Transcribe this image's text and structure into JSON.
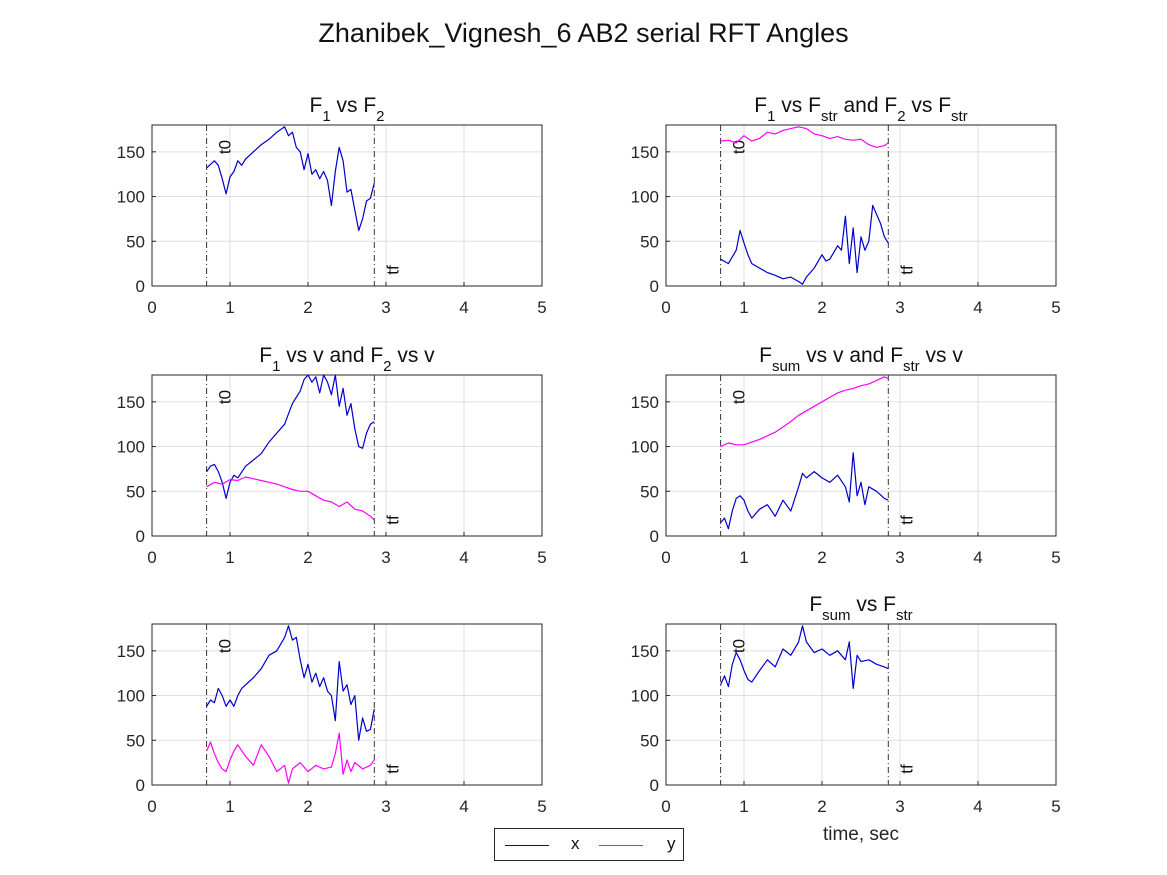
{
  "figure": {
    "title": "Zhanibek_Vignesh_6 AB2 serial RFT Angles",
    "xlabel": "time, sec"
  },
  "legend": {
    "entries": [
      {
        "label": "x",
        "color": "#0000cc"
      },
      {
        "label": "y",
        "color": "#ff00ff"
      }
    ],
    "placement": "bottom-center"
  },
  "chart_data": [
    {
      "id": "p1",
      "type": "line",
      "title_parts": [
        {
          "t": "F"
        },
        {
          "t": "1",
          "sub": true
        },
        {
          "t": " vs F"
        },
        {
          "t": "2",
          "sub": true
        }
      ],
      "title": "F1 vs F2",
      "xlim": [
        0,
        5
      ],
      "ylim": [
        0,
        180
      ],
      "xticks": [
        0,
        1,
        2,
        3,
        4,
        5
      ],
      "yticks": [
        0,
        50,
        100,
        150
      ],
      "grid": true,
      "markers": [
        {
          "label": "t0",
          "x": 0.7
        },
        {
          "label": "tf",
          "x": 2.85
        }
      ],
      "series": [
        {
          "color": "#0000cc",
          "x": [
            0.7,
            0.75,
            0.8,
            0.85,
            0.9,
            0.95,
            1.0,
            1.05,
            1.1,
            1.15,
            1.2,
            1.3,
            1.4,
            1.5,
            1.6,
            1.7,
            1.75,
            1.8,
            1.85,
            1.9,
            1.95,
            2.0,
            2.05,
            2.1,
            2.15,
            2.2,
            2.25,
            2.3,
            2.35,
            2.4,
            2.45,
            2.5,
            2.55,
            2.6,
            2.65,
            2.7,
            2.75,
            2.8,
            2.85
          ],
          "y": [
            132,
            136,
            140,
            135,
            120,
            103,
            122,
            128,
            140,
            135,
            142,
            150,
            158,
            164,
            172,
            178,
            168,
            172,
            155,
            150,
            130,
            148,
            125,
            130,
            120,
            128,
            118,
            90,
            128,
            155,
            140,
            105,
            108,
            85,
            62,
            75,
            95,
            98,
            115
          ]
        }
      ]
    },
    {
      "id": "p2",
      "type": "line",
      "title_parts": [
        {
          "t": "F"
        },
        {
          "t": "1",
          "sub": true
        },
        {
          "t": " vs F"
        },
        {
          "t": "str",
          "sub": true
        },
        {
          "t": " and F"
        },
        {
          "t": "2",
          "sub": true
        },
        {
          "t": " vs F"
        },
        {
          "t": "str",
          "sub": true
        }
      ],
      "title": "F1 vs Fstr and F2 vs Fstr",
      "xlim": [
        0,
        5
      ],
      "ylim": [
        0,
        180
      ],
      "xticks": [
        0,
        1,
        2,
        3,
        4,
        5
      ],
      "yticks": [
        0,
        50,
        100,
        150
      ],
      "grid": true,
      "markers": [
        {
          "label": "t0",
          "x": 0.7
        },
        {
          "label": "tf",
          "x": 2.85
        }
      ],
      "series": [
        {
          "color": "#0000cc",
          "x": [
            0.7,
            0.8,
            0.9,
            0.95,
            1.0,
            1.05,
            1.1,
            1.2,
            1.3,
            1.4,
            1.5,
            1.6,
            1.7,
            1.75,
            1.8,
            1.9,
            2.0,
            2.05,
            2.1,
            2.2,
            2.25,
            2.3,
            2.35,
            2.4,
            2.45,
            2.5,
            2.55,
            2.6,
            2.65,
            2.7,
            2.75,
            2.8,
            2.85
          ],
          "y": [
            30,
            25,
            40,
            62,
            48,
            35,
            25,
            20,
            15,
            12,
            8,
            10,
            5,
            2,
            10,
            20,
            35,
            28,
            30,
            45,
            40,
            78,
            25,
            65,
            15,
            55,
            40,
            50,
            90,
            80,
            70,
            55,
            48
          ]
        },
        {
          "color": "#ff00ff",
          "x": [
            0.7,
            0.8,
            0.9,
            1.0,
            1.1,
            1.2,
            1.3,
            1.4,
            1.5,
            1.6,
            1.7,
            1.8,
            1.9,
            2.0,
            2.1,
            2.2,
            2.3,
            2.4,
            2.5,
            2.6,
            2.7,
            2.8,
            2.85
          ],
          "y": [
            162,
            163,
            160,
            168,
            162,
            165,
            172,
            170,
            174,
            176,
            178,
            176,
            170,
            168,
            165,
            167,
            164,
            163,
            164,
            158,
            155,
            157,
            160
          ]
        }
      ]
    },
    {
      "id": "p3",
      "type": "line",
      "title_parts": [
        {
          "t": "F"
        },
        {
          "t": "1",
          "sub": true
        },
        {
          "t": " vs v and F"
        },
        {
          "t": "2",
          "sub": true
        },
        {
          "t": " vs v"
        }
      ],
      "title": "F1 vs v and F2 vs v",
      "xlim": [
        0,
        5
      ],
      "ylim": [
        0,
        180
      ],
      "xticks": [
        0,
        1,
        2,
        3,
        4,
        5
      ],
      "yticks": [
        0,
        50,
        100,
        150
      ],
      "grid": true,
      "markers": [
        {
          "label": "t0",
          "x": 0.7
        },
        {
          "label": "tf",
          "x": 2.85
        }
      ],
      "series": [
        {
          "color": "#0000cc",
          "x": [
            0.7,
            0.75,
            0.8,
            0.85,
            0.9,
            0.95,
            1.0,
            1.05,
            1.1,
            1.2,
            1.3,
            1.4,
            1.5,
            1.6,
            1.7,
            1.8,
            1.9,
            1.95,
            2.0,
            2.05,
            2.1,
            2.15,
            2.2,
            2.25,
            2.3,
            2.35,
            2.4,
            2.45,
            2.5,
            2.55,
            2.6,
            2.65,
            2.7,
            2.75,
            2.8,
            2.85
          ],
          "y": [
            72,
            78,
            80,
            72,
            60,
            42,
            60,
            68,
            65,
            78,
            85,
            92,
            105,
            115,
            125,
            148,
            162,
            175,
            180,
            172,
            178,
            160,
            180,
            172,
            158,
            180,
            145,
            165,
            135,
            148,
            120,
            100,
            98,
            115,
            125,
            128
          ]
        },
        {
          "color": "#ff00ff",
          "x": [
            0.7,
            0.8,
            0.9,
            1.0,
            1.1,
            1.2,
            1.3,
            1.4,
            1.5,
            1.6,
            1.7,
            1.8,
            1.9,
            2.0,
            2.1,
            2.2,
            2.3,
            2.4,
            2.5,
            2.6,
            2.7,
            2.8,
            2.85
          ],
          "y": [
            55,
            60,
            58,
            63,
            62,
            66,
            64,
            62,
            60,
            58,
            55,
            52,
            50,
            50,
            45,
            40,
            38,
            33,
            38,
            30,
            28,
            22,
            18
          ]
        }
      ]
    },
    {
      "id": "p4",
      "type": "line",
      "title_parts": [
        {
          "t": "F"
        },
        {
          "t": "sum",
          "sub": true
        },
        {
          "t": " vs v and F"
        },
        {
          "t": "str",
          "sub": true
        },
        {
          "t": " vs v"
        }
      ],
      "title": "Fsum vs v and Fstr vs v",
      "xlim": [
        0,
        5
      ],
      "ylim": [
        0,
        180
      ],
      "xticks": [
        0,
        1,
        2,
        3,
        4,
        5
      ],
      "yticks": [
        0,
        50,
        100,
        150
      ],
      "grid": true,
      "markers": [
        {
          "label": "t0",
          "x": 0.7
        },
        {
          "label": "tf",
          "x": 2.85
        }
      ],
      "series": [
        {
          "color": "#0000cc",
          "x": [
            0.7,
            0.75,
            0.8,
            0.85,
            0.9,
            0.95,
            1.0,
            1.05,
            1.1,
            1.2,
            1.3,
            1.4,
            1.5,
            1.6,
            1.7,
            1.75,
            1.8,
            1.9,
            2.0,
            2.1,
            2.2,
            2.3,
            2.35,
            2.4,
            2.45,
            2.5,
            2.55,
            2.6,
            2.7,
            2.8,
            2.85
          ],
          "y": [
            15,
            20,
            8,
            28,
            42,
            45,
            40,
            28,
            20,
            30,
            35,
            22,
            40,
            28,
            55,
            70,
            65,
            72,
            65,
            60,
            68,
            55,
            38,
            93,
            45,
            60,
            35,
            55,
            50,
            42,
            40
          ]
        },
        {
          "color": "#ff00ff",
          "x": [
            0.7,
            0.8,
            0.9,
            1.0,
            1.1,
            1.2,
            1.3,
            1.4,
            1.5,
            1.6,
            1.7,
            1.8,
            1.9,
            2.0,
            2.1,
            2.2,
            2.3,
            2.4,
            2.5,
            2.6,
            2.7,
            2.8,
            2.85
          ],
          "y": [
            100,
            104,
            102,
            102,
            105,
            108,
            112,
            116,
            122,
            128,
            135,
            140,
            145,
            150,
            155,
            160,
            163,
            165,
            168,
            170,
            174,
            178,
            176
          ]
        }
      ]
    },
    {
      "id": "p5",
      "type": "line",
      "title_parts": [],
      "title": "",
      "xlim": [
        0,
        5
      ],
      "ylim": [
        0,
        180
      ],
      "xticks": [
        0,
        1,
        2,
        3,
        4,
        5
      ],
      "yticks": [
        0,
        50,
        100,
        150
      ],
      "grid": true,
      "markers": [
        {
          "label": "t0",
          "x": 0.7
        },
        {
          "label": "tf",
          "x": 2.85
        }
      ],
      "series": [
        {
          "color": "#0000cc",
          "x": [
            0.7,
            0.75,
            0.8,
            0.85,
            0.9,
            0.95,
            1.0,
            1.05,
            1.1,
            1.15,
            1.2,
            1.3,
            1.4,
            1.5,
            1.6,
            1.7,
            1.75,
            1.8,
            1.85,
            1.9,
            1.95,
            2.0,
            2.05,
            2.1,
            2.15,
            2.2,
            2.25,
            2.3,
            2.35,
            2.4,
            2.45,
            2.5,
            2.55,
            2.6,
            2.65,
            2.7,
            2.75,
            2.8,
            2.85
          ],
          "y": [
            88,
            95,
            92,
            108,
            100,
            88,
            95,
            88,
            100,
            108,
            112,
            120,
            130,
            145,
            150,
            165,
            178,
            162,
            165,
            140,
            120,
            135,
            115,
            125,
            110,
            120,
            105,
            100,
            72,
            138,
            105,
            112,
            90,
            100,
            50,
            75,
            60,
            62,
            85
          ]
        },
        {
          "color": "#ff00ff",
          "x": [
            0.7,
            0.75,
            0.8,
            0.85,
            0.9,
            0.95,
            1.0,
            1.05,
            1.1,
            1.2,
            1.3,
            1.4,
            1.5,
            1.6,
            1.7,
            1.75,
            1.8,
            1.9,
            2.0,
            2.1,
            2.2,
            2.3,
            2.35,
            2.4,
            2.45,
            2.5,
            2.55,
            2.6,
            2.7,
            2.8,
            2.85
          ],
          "y": [
            38,
            48,
            35,
            25,
            18,
            15,
            28,
            38,
            45,
            32,
            22,
            45,
            32,
            15,
            22,
            2,
            18,
            25,
            15,
            22,
            18,
            20,
            35,
            58,
            12,
            28,
            15,
            25,
            18,
            22,
            28
          ]
        }
      ]
    },
    {
      "id": "p6",
      "type": "line",
      "title_parts": [
        {
          "t": "F"
        },
        {
          "t": "sum",
          "sub": true
        },
        {
          "t": " vs F"
        },
        {
          "t": "str",
          "sub": true
        }
      ],
      "title": "Fsum vs Fstr",
      "xlim": [
        0,
        5
      ],
      "ylim": [
        0,
        180
      ],
      "xticks": [
        0,
        1,
        2,
        3,
        4,
        5
      ],
      "yticks": [
        0,
        50,
        100,
        150
      ],
      "grid": true,
      "markers": [
        {
          "label": "t0",
          "x": 0.7
        },
        {
          "label": "tf",
          "x": 2.85
        }
      ],
      "series": [
        {
          "color": "#0000cc",
          "x": [
            0.7,
            0.75,
            0.8,
            0.85,
            0.9,
            0.95,
            1.0,
            1.05,
            1.1,
            1.2,
            1.3,
            1.4,
            1.5,
            1.6,
            1.7,
            1.75,
            1.8,
            1.9,
            2.0,
            2.1,
            2.2,
            2.3,
            2.35,
            2.4,
            2.45,
            2.5,
            2.6,
            2.7,
            2.8,
            2.85
          ],
          "y": [
            112,
            122,
            110,
            135,
            148,
            140,
            128,
            118,
            115,
            128,
            140,
            132,
            152,
            145,
            160,
            178,
            160,
            148,
            152,
            145,
            150,
            140,
            160,
            108,
            145,
            138,
            140,
            135,
            132,
            130
          ]
        }
      ]
    }
  ]
}
